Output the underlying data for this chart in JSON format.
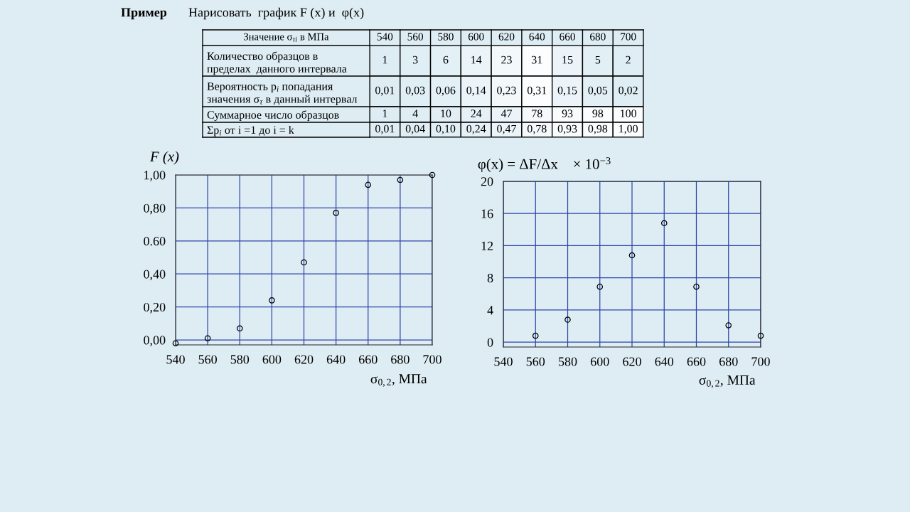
{
  "chart_data": [
    {
      "type": "heatmap",
      "title": "Пример",
      "subtitle": "Нарисовать  график F (x) и  φ(x)",
      "xlabel": "Значение σ$_{τi}$ в МПа",
      "categories": [
        "540",
        "560",
        "580",
        "600",
        "620",
        "640",
        "660",
        "680",
        "700"
      ],
      "y_categories": [
        "Количество образцов в\nпределах  данного интервала",
        "Вероятность p$_{i}$ попадания\nзначения σ$_{τ}$ в данный интервал",
        "Суммарное число образцов",
        "Σp$_{i}$ от i =1 до i = k"
      ],
      "cells": [
        [
          1,
          3,
          6,
          14,
          23,
          31,
          15,
          5,
          2
        ],
        [
          0.01,
          0.03,
          0.06,
          0.14,
          0.23,
          0.31,
          0.15,
          0.05,
          0.02
        ],
        [
          1,
          4,
          10,
          24,
          47,
          78,
          93,
          98,
          100
        ],
        [
          0.01,
          0.04,
          0.1,
          0.24,
          0.47,
          0.78,
          0.93,
          0.98,
          1.0
        ]
      ],
      "cell_labels": [
        [
          "1",
          "3",
          "6",
          "14",
          "23",
          "31",
          "15",
          "5",
          "2"
        ],
        [
          "0,01",
          "0,03",
          "0,06",
          "0,14",
          "0,23",
          "0,31",
          "0,15",
          "0,05",
          "0,02"
        ],
        [
          "1",
          "4",
          "10",
          "24",
          "47",
          "78",
          "93",
          "98",
          "100"
        ],
        [
          "0,01",
          "0,04",
          "0,10",
          "0,24",
          "0,47",
          "0,78",
          "0,93",
          "0,98",
          "1,00"
        ]
      ]
    },
    {
      "type": "scatter",
      "ylabel": "F (x)",
      "xlabel": "σ$_{0,2}$, МПа",
      "x": [
        540,
        560,
        580,
        600,
        620,
        640,
        660,
        680,
        700
      ],
      "series": [
        {
          "color": "#000000",
          "values": [
            -0.02,
            0.01,
            0.07,
            0.24,
            0.47,
            0.77,
            0.94,
            0.97,
            1.0
          ]
        }
      ],
      "xlim": [
        540,
        700
      ],
      "xticks": [
        540,
        560,
        580,
        600,
        620,
        640,
        660,
        680,
        700
      ],
      "ylim": [
        -0.03,
        1.0
      ],
      "yticks": [
        {
          "value": 0,
          "label": "0,00"
        },
        {
          "value": 0.2,
          "label": "0,20"
        },
        {
          "value": 0.4,
          "label": "0,40"
        },
        {
          "value": 0.6,
          "label": "0.60"
        },
        {
          "value": 0.8,
          "label": "0,80"
        },
        {
          "value": 1.0,
          "label": "1,00"
        }
      ],
      "grid": true,
      "marker": "circle"
    },
    {
      "type": "scatter",
      "ylabel": "φ(x) = ΔF/Δx    × 10$^{−3}$",
      "xlabel": "σ$_{0,2}$, МПа",
      "x": [
        560,
        580,
        600,
        620,
        640,
        660,
        680,
        700
      ],
      "series": [
        {
          "color": "#000000",
          "values": [
            0.8,
            2.8,
            6.9,
            10.8,
            14.8,
            6.9,
            2.1,
            0.8
          ]
        }
      ],
      "xlim": [
        540,
        700
      ],
      "xticks": [
        540,
        560,
        580,
        600,
        620,
        640,
        660,
        680,
        700
      ],
      "ylim": [
        -0.6,
        20
      ],
      "yticks": [
        0,
        4,
        8,
        12,
        16,
        20
      ],
      "grid": true,
      "marker": "circle"
    }
  ]
}
